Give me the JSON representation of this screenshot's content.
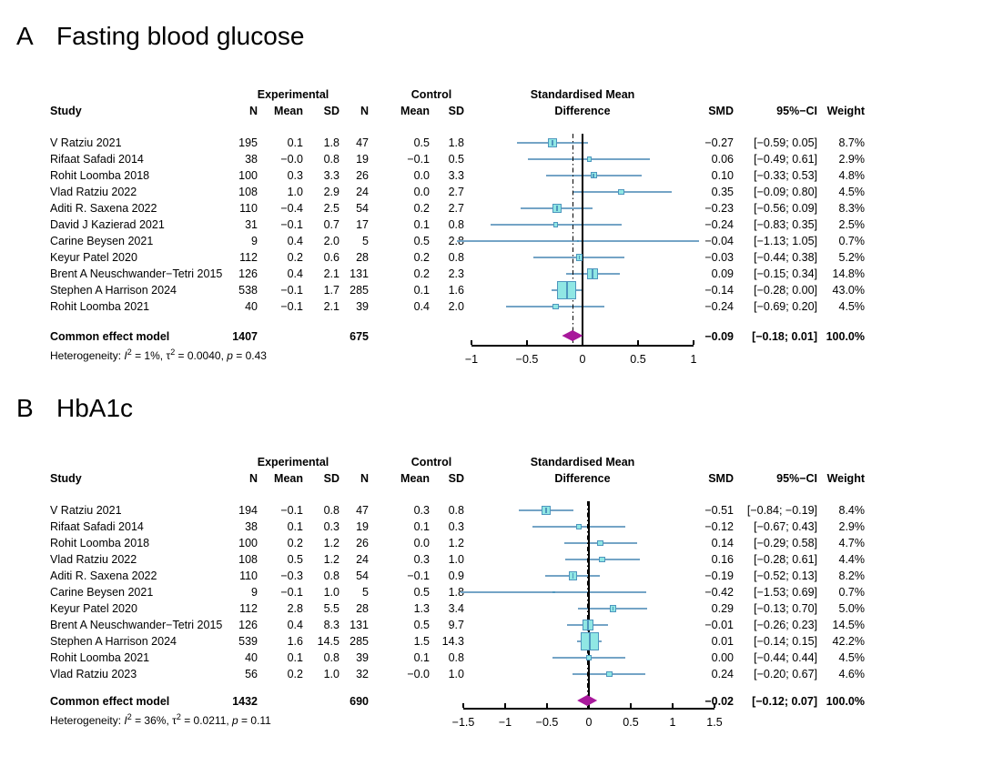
{
  "colors": {
    "ci_line": "#74A4C6",
    "square_fill": "#90E7E4",
    "square_border": "#4E96BE",
    "diamond": "#A8189B",
    "axis": "#000000"
  },
  "chart_data": [
    {
      "type": "forest",
      "panel_label": "A",
      "title": "Fasting blood glucose",
      "columns": {
        "study": "Study",
        "experimental_group": "Experimental",
        "control_group": "Control",
        "n": "N",
        "mean": "Mean",
        "sd": "SD",
        "effect_line1": "Standardised Mean",
        "effect_line2": "Difference",
        "smd": "SMD",
        "ci": "95%−CI",
        "weight": "Weight"
      },
      "studies": [
        {
          "study": "V Ratziu 2021",
          "exp_n": "195",
          "exp_mean": "0.1",
          "exp_sd": "1.8",
          "ctrl_n": "47",
          "ctrl_mean": "0.5",
          "ctrl_sd": "1.8",
          "smd": -0.27,
          "ci_low": -0.59,
          "ci_high": 0.05,
          "smd_text": "−0.27",
          "ci_text": "[−0.59; 0.05]",
          "weight": 8.7,
          "weight_text": "8.7%"
        },
        {
          "study": "Rifaat Safadi 2014",
          "exp_n": "38",
          "exp_mean": "−0.0",
          "exp_sd": "0.8",
          "ctrl_n": "19",
          "ctrl_mean": "−0.1",
          "ctrl_sd": "0.5",
          "smd": 0.06,
          "ci_low": -0.49,
          "ci_high": 0.61,
          "smd_text": "0.06",
          "ci_text": "[−0.49; 0.61]",
          "weight": 2.9,
          "weight_text": "2.9%"
        },
        {
          "study": "Rohit Loomba 2018",
          "exp_n": "100",
          "exp_mean": "0.3",
          "exp_sd": "3.3",
          "ctrl_n": "26",
          "ctrl_mean": "0.0",
          "ctrl_sd": "3.3",
          "smd": 0.1,
          "ci_low": -0.33,
          "ci_high": 0.53,
          "smd_text": "0.10",
          "ci_text": "[−0.33; 0.53]",
          "weight": 4.8,
          "weight_text": "4.8%"
        },
        {
          "study": "Vlad Ratziu 2022",
          "exp_n": "108",
          "exp_mean": "1.0",
          "exp_sd": "2.9",
          "ctrl_n": "24",
          "ctrl_mean": "0.0",
          "ctrl_sd": "2.7",
          "smd": 0.35,
          "ci_low": -0.09,
          "ci_high": 0.8,
          "smd_text": "0.35",
          "ci_text": "[−0.09; 0.80]",
          "weight": 4.5,
          "weight_text": "4.5%"
        },
        {
          "study": "Aditi R. Saxena 2022",
          "exp_n": "110",
          "exp_mean": "−0.4",
          "exp_sd": "2.5",
          "ctrl_n": "54",
          "ctrl_mean": "0.2",
          "ctrl_sd": "2.7",
          "smd": -0.23,
          "ci_low": -0.56,
          "ci_high": 0.09,
          "smd_text": "−0.23",
          "ci_text": "[−0.56; 0.09]",
          "weight": 8.3,
          "weight_text": "8.3%"
        },
        {
          "study": "David J Kazierad 2021",
          "exp_n": "31",
          "exp_mean": "−0.1",
          "exp_sd": "0.7",
          "ctrl_n": "17",
          "ctrl_mean": "0.1",
          "ctrl_sd": "0.8",
          "smd": -0.24,
          "ci_low": -0.83,
          "ci_high": 0.35,
          "smd_text": "−0.24",
          "ci_text": "[−0.83; 0.35]",
          "weight": 2.5,
          "weight_text": "2.5%"
        },
        {
          "study": "Carine Beysen 2021",
          "exp_n": "9",
          "exp_mean": "0.4",
          "exp_sd": "2.0",
          "ctrl_n": "5",
          "ctrl_mean": "0.5",
          "ctrl_sd": "2.8",
          "smd": -0.04,
          "ci_low": -1.13,
          "ci_high": 1.05,
          "smd_text": "−0.04",
          "ci_text": "[−1.13; 1.05]",
          "weight": 0.7,
          "weight_text": "0.7%"
        },
        {
          "study": "Keyur Patel 2020",
          "exp_n": "112",
          "exp_mean": "0.2",
          "exp_sd": "0.6",
          "ctrl_n": "28",
          "ctrl_mean": "0.2",
          "ctrl_sd": "0.8",
          "smd": -0.03,
          "ci_low": -0.44,
          "ci_high": 0.38,
          "smd_text": "−0.03",
          "ci_text": "[−0.44; 0.38]",
          "weight": 5.2,
          "weight_text": "5.2%"
        },
        {
          "study": "Brent A Neuschwander−Tetri 2015",
          "exp_n": "126",
          "exp_mean": "0.4",
          "exp_sd": "2.1",
          "ctrl_n": "131",
          "ctrl_mean": "0.2",
          "ctrl_sd": "2.3",
          "smd": 0.09,
          "ci_low": -0.15,
          "ci_high": 0.34,
          "smd_text": "0.09",
          "ci_text": "[−0.15; 0.34]",
          "weight": 14.8,
          "weight_text": "14.8%"
        },
        {
          "study": "Stephen A Harrison 2024",
          "exp_n": "538",
          "exp_mean": "−0.1",
          "exp_sd": "1.7",
          "ctrl_n": "285",
          "ctrl_mean": "0.1",
          "ctrl_sd": "1.6",
          "smd": -0.14,
          "ci_low": -0.28,
          "ci_high": 0.0,
          "smd_text": "−0.14",
          "ci_text": "[−0.28; 0.00]",
          "weight": 43.0,
          "weight_text": "43.0%"
        },
        {
          "study": "Rohit Loomba 2021",
          "exp_n": "40",
          "exp_mean": "−0.1",
          "exp_sd": "2.1",
          "ctrl_n": "39",
          "ctrl_mean": "0.4",
          "ctrl_sd": "2.0",
          "smd": -0.24,
          "ci_low": -0.69,
          "ci_high": 0.2,
          "smd_text": "−0.24",
          "ci_text": "[−0.69; 0.20]",
          "weight": 4.5,
          "weight_text": "4.5%"
        }
      ],
      "summary": {
        "label": "Common effect model",
        "exp_n": "1407",
        "ctrl_n": "675",
        "smd": -0.09,
        "ci_low": -0.18,
        "ci_high": 0.01,
        "smd_text": "−0.09",
        "ci_text": "[−0.18; 0.01]",
        "weight_text": "100.0%"
      },
      "heterogeneity": {
        "prefix": "Heterogeneity:",
        "i2": "1%",
        "tau2": "0.0040",
        "p": "0.43"
      },
      "axis": {
        "xlim": [
          -1,
          1
        ],
        "ticks": [
          -1,
          -0.5,
          0,
          0.5,
          1
        ],
        "tick_labels": [
          "−1",
          "−0.5",
          "0",
          "0.5",
          "1"
        ]
      }
    },
    {
      "type": "forest",
      "panel_label": "B",
      "title": "HbA1c",
      "columns": {
        "study": "Study",
        "experimental_group": "Experimental",
        "control_group": "Control",
        "n": "N",
        "mean": "Mean",
        "sd": "SD",
        "effect_line1": "Standardised Mean",
        "effect_line2": "Difference",
        "smd": "SMD",
        "ci": "95%−CI",
        "weight": "Weight"
      },
      "studies": [
        {
          "study": "V Ratziu 2021",
          "exp_n": "194",
          "exp_mean": "−0.1",
          "exp_sd": "0.8",
          "ctrl_n": "47",
          "ctrl_mean": "0.3",
          "ctrl_sd": "0.8",
          "smd": -0.51,
          "ci_low": -0.84,
          "ci_high": -0.19,
          "smd_text": "−0.51",
          "ci_text": "[−0.84; −0.19]",
          "weight": 8.4,
          "weight_text": "8.4%"
        },
        {
          "study": "Rifaat Safadi 2014",
          "exp_n": "38",
          "exp_mean": "0.1",
          "exp_sd": "0.3",
          "ctrl_n": "19",
          "ctrl_mean": "0.1",
          "ctrl_sd": "0.3",
          "smd": -0.12,
          "ci_low": -0.67,
          "ci_high": 0.43,
          "smd_text": "−0.12",
          "ci_text": "[−0.67; 0.43]",
          "weight": 2.9,
          "weight_text": "2.9%"
        },
        {
          "study": "Rohit Loomba 2018",
          "exp_n": "100",
          "exp_mean": "0.2",
          "exp_sd": "1.2",
          "ctrl_n": "26",
          "ctrl_mean": "0.0",
          "ctrl_sd": "1.2",
          "smd": 0.14,
          "ci_low": -0.29,
          "ci_high": 0.58,
          "smd_text": "0.14",
          "ci_text": "[−0.29; 0.58]",
          "weight": 4.7,
          "weight_text": "4.7%"
        },
        {
          "study": "Vlad Ratziu 2022",
          "exp_n": "108",
          "exp_mean": "0.5",
          "exp_sd": "1.2",
          "ctrl_n": "24",
          "ctrl_mean": "0.3",
          "ctrl_sd": "1.0",
          "smd": 0.16,
          "ci_low": -0.28,
          "ci_high": 0.61,
          "smd_text": "0.16",
          "ci_text": "[−0.28; 0.61]",
          "weight": 4.4,
          "weight_text": "4.4%"
        },
        {
          "study": "Aditi R. Saxena 2022",
          "exp_n": "110",
          "exp_mean": "−0.3",
          "exp_sd": "0.8",
          "ctrl_n": "54",
          "ctrl_mean": "−0.1",
          "ctrl_sd": "0.9",
          "smd": -0.19,
          "ci_low": -0.52,
          "ci_high": 0.13,
          "smd_text": "−0.19",
          "ci_text": "[−0.52; 0.13]",
          "weight": 8.2,
          "weight_text": "8.2%"
        },
        {
          "study": "Carine Beysen 2021",
          "exp_n": "9",
          "exp_mean": "−0.1",
          "exp_sd": "1.0",
          "ctrl_n": "5",
          "ctrl_mean": "0.5",
          "ctrl_sd": "1.8",
          "smd": -0.42,
          "ci_low": -1.53,
          "ci_high": 0.69,
          "smd_text": "−0.42",
          "ci_text": "[−1.53; 0.69]",
          "weight": 0.7,
          "weight_text": "0.7%"
        },
        {
          "study": "Keyur Patel 2020",
          "exp_n": "112",
          "exp_mean": "2.8",
          "exp_sd": "5.5",
          "ctrl_n": "28",
          "ctrl_mean": "1.3",
          "ctrl_sd": "3.4",
          "smd": 0.29,
          "ci_low": -0.13,
          "ci_high": 0.7,
          "smd_text": "0.29",
          "ci_text": "[−0.13; 0.70]",
          "weight": 5.0,
          "weight_text": "5.0%"
        },
        {
          "study": "Brent A Neuschwander−Tetri 2015",
          "exp_n": "126",
          "exp_mean": "0.4",
          "exp_sd": "8.3",
          "ctrl_n": "131",
          "ctrl_mean": "0.5",
          "ctrl_sd": "9.7",
          "smd": -0.01,
          "ci_low": -0.26,
          "ci_high": 0.23,
          "smd_text": "−0.01",
          "ci_text": "[−0.26; 0.23]",
          "weight": 14.5,
          "weight_text": "14.5%"
        },
        {
          "study": "Stephen A Harrison 2024",
          "exp_n": "539",
          "exp_mean": "1.6",
          "exp_sd": "14.5",
          "ctrl_n": "285",
          "ctrl_mean": "1.5",
          "ctrl_sd": "14.3",
          "smd": 0.01,
          "ci_low": -0.14,
          "ci_high": 0.15,
          "smd_text": "0.01",
          "ci_text": "[−0.14; 0.15]",
          "weight": 42.2,
          "weight_text": "42.2%"
        },
        {
          "study": "Rohit Loomba 2021",
          "exp_n": "40",
          "exp_mean": "0.1",
          "exp_sd": "0.8",
          "ctrl_n": "39",
          "ctrl_mean": "0.1",
          "ctrl_sd": "0.8",
          "smd": 0.0,
          "ci_low": -0.44,
          "ci_high": 0.44,
          "smd_text": "0.00",
          "ci_text": "[−0.44; 0.44]",
          "weight": 4.5,
          "weight_text": "4.5%"
        },
        {
          "study": "Vlad Ratziu 2023",
          "exp_n": "56",
          "exp_mean": "0.2",
          "exp_sd": "1.0",
          "ctrl_n": "32",
          "ctrl_mean": "−0.0",
          "ctrl_sd": "1.0",
          "smd": 0.24,
          "ci_low": -0.2,
          "ci_high": 0.67,
          "smd_text": "0.24",
          "ci_text": "[−0.20; 0.67]",
          "weight": 4.6,
          "weight_text": "4.6%"
        }
      ],
      "summary": {
        "label": "Common effect model",
        "exp_n": "1432",
        "ctrl_n": "690",
        "smd": -0.02,
        "ci_low": -0.12,
        "ci_high": 0.07,
        "smd_text": "−0.02",
        "ci_text": "[−0.12; 0.07]",
        "weight_text": "100.0%"
      },
      "heterogeneity": {
        "prefix": "Heterogeneity:",
        "i2": "36%",
        "tau2": "0.0211",
        "p": "0.11"
      },
      "axis": {
        "xlim": [
          -1.5,
          1.5
        ],
        "ticks": [
          -1.5,
          -1,
          -0.5,
          0,
          0.5,
          1,
          1.5
        ],
        "tick_labels": [
          "−1.5",
          "−1",
          "−0.5",
          "0",
          "0.5",
          "1",
          "1.5"
        ]
      }
    }
  ]
}
